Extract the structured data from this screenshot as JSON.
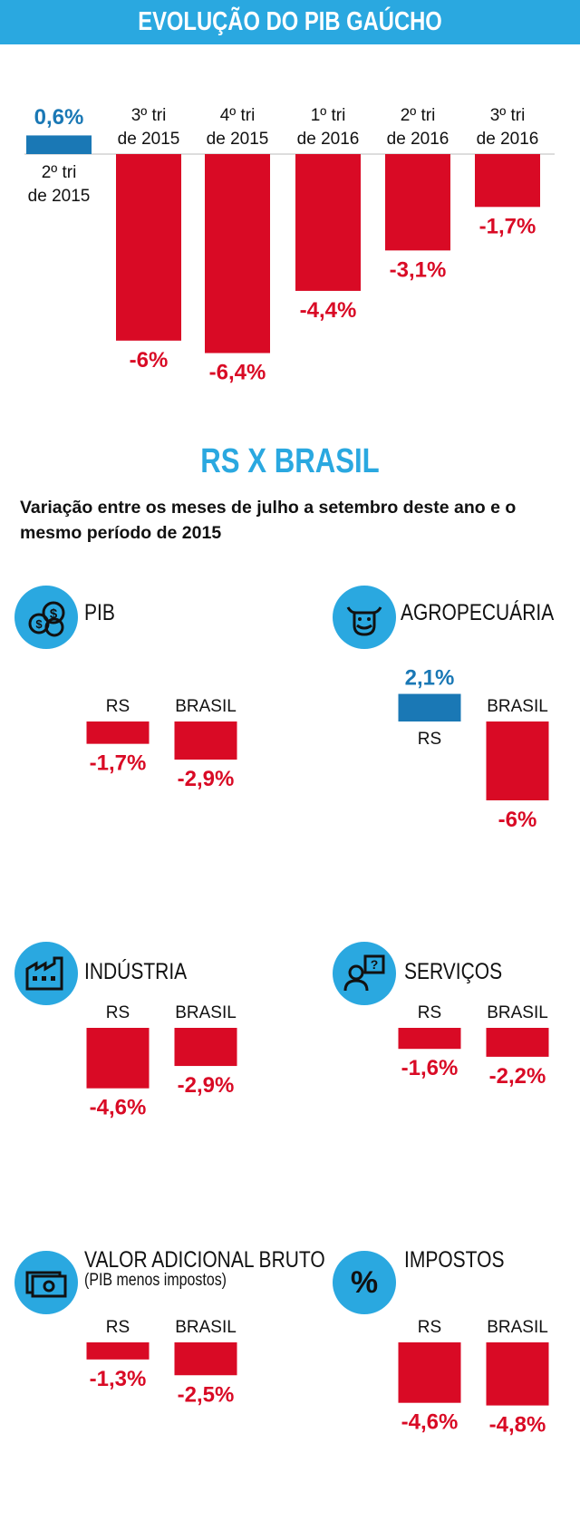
{
  "header": {
    "title": "EVOLUÇÃO DO PIB GAÚCHO"
  },
  "colors": {
    "header_bg": "#2aa8e0",
    "negative": "#d90a25",
    "positive": "#1a78b5",
    "accent": "#2aa8e0"
  },
  "chart_data": [
    {
      "type": "bar",
      "title": "EVOLUÇÃO DO PIB GAÚCHO",
      "categories": [
        [
          "2º tri",
          "de 2015"
        ],
        [
          "3º tri",
          "de 2015"
        ],
        [
          "4º tri",
          "de 2015"
        ],
        [
          "1º tri",
          "de 2016"
        ],
        [
          "2º tri",
          "de 2016"
        ],
        [
          "3º tri",
          "de 2016"
        ]
      ],
      "values": [
        0.6,
        -6,
        -6.4,
        -4.4,
        -3.1,
        -1.7
      ],
      "value_labels": [
        "0,6%",
        "-6%",
        "-6,4%",
        "-4,4%",
        "-3,1%",
        "-1,7%"
      ]
    },
    {
      "type": "bar",
      "title": "PIB",
      "icon": "coins-icon",
      "categories": [
        "RS",
        "BRASIL"
      ],
      "values": [
        -1.7,
        -2.9
      ],
      "value_labels": [
        "-1,7%",
        "-2,9%"
      ]
    },
    {
      "type": "bar",
      "title": "AGROPECUÁRIA",
      "icon": "cow-icon",
      "categories": [
        "RS",
        "BRASIL"
      ],
      "values": [
        2.1,
        -6
      ],
      "value_labels": [
        "2,1%",
        "-6%"
      ]
    },
    {
      "type": "bar",
      "title": "INDÚSTRIA",
      "icon": "factory-icon",
      "categories": [
        "RS",
        "BRASIL"
      ],
      "values": [
        -4.6,
        -2.9
      ],
      "value_labels": [
        "-4,6%",
        "-2,9%"
      ]
    },
    {
      "type": "bar",
      "title": "SERVIÇOS",
      "icon": "service-person-icon",
      "categories": [
        "RS",
        "BRASIL"
      ],
      "values": [
        -1.6,
        -2.2
      ],
      "value_labels": [
        "-1,6%",
        "-2,2%"
      ]
    },
    {
      "type": "bar",
      "title": "VALOR ADICIONAL BRUTO",
      "subtitle": "(PIB menos impostos)",
      "icon": "money-bill-icon",
      "categories": [
        "RS",
        "BRASIL"
      ],
      "values": [
        -1.3,
        -2.5
      ],
      "value_labels": [
        "-1,3%",
        "-2,5%"
      ]
    },
    {
      "type": "bar",
      "title": "IMPOSTOS",
      "icon": "percent-icon",
      "categories": [
        "RS",
        "BRASIL"
      ],
      "values": [
        -4.6,
        -4.8
      ],
      "value_labels": [
        "-4,6%",
        "-4,8%"
      ]
    }
  ],
  "comparison": {
    "title": "RS X BRASIL",
    "subtitle": "Variação entre os meses de julho a setembro deste ano e o mesmo período de 2015"
  }
}
